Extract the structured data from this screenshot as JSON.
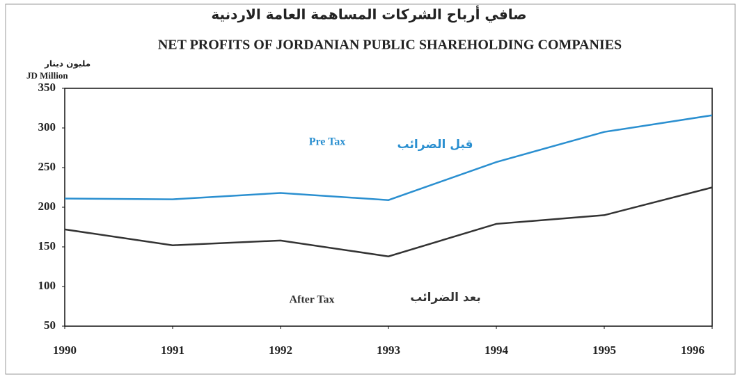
{
  "chart_data": {
    "type": "line",
    "title_ar": "صافي أرباح الشركات المساهمة العامة الاردنية",
    "title": "NET PROFITS OF JORDANIAN PUBLIC SHAREHOLDING COMPANIES",
    "ylabel_ar": "مليون دينار",
    "ylabel": "JD Million",
    "x": [
      1990,
      1991,
      1992,
      1993,
      1994,
      1995,
      1996
    ],
    "xlim": [
      1990,
      1996
    ],
    "xticks": [
      1990,
      1991,
      1992,
      1993,
      1994,
      1995,
      1996
    ],
    "ylim": [
      50,
      350
    ],
    "yticks": [
      50,
      100,
      150,
      200,
      250,
      300,
      350
    ],
    "grid": false,
    "series": [
      {
        "name": "Pre Tax",
        "label_ar": "قبل الضرائب",
        "color": "#2a8fd0",
        "values": [
          211,
          210,
          218,
          209,
          257,
          295,
          316
        ]
      },
      {
        "name": "After Tax",
        "label_ar": "بعد الضرائب",
        "color": "#333333",
        "values": [
          172,
          152,
          158,
          138,
          179,
          190,
          225
        ]
      }
    ]
  }
}
